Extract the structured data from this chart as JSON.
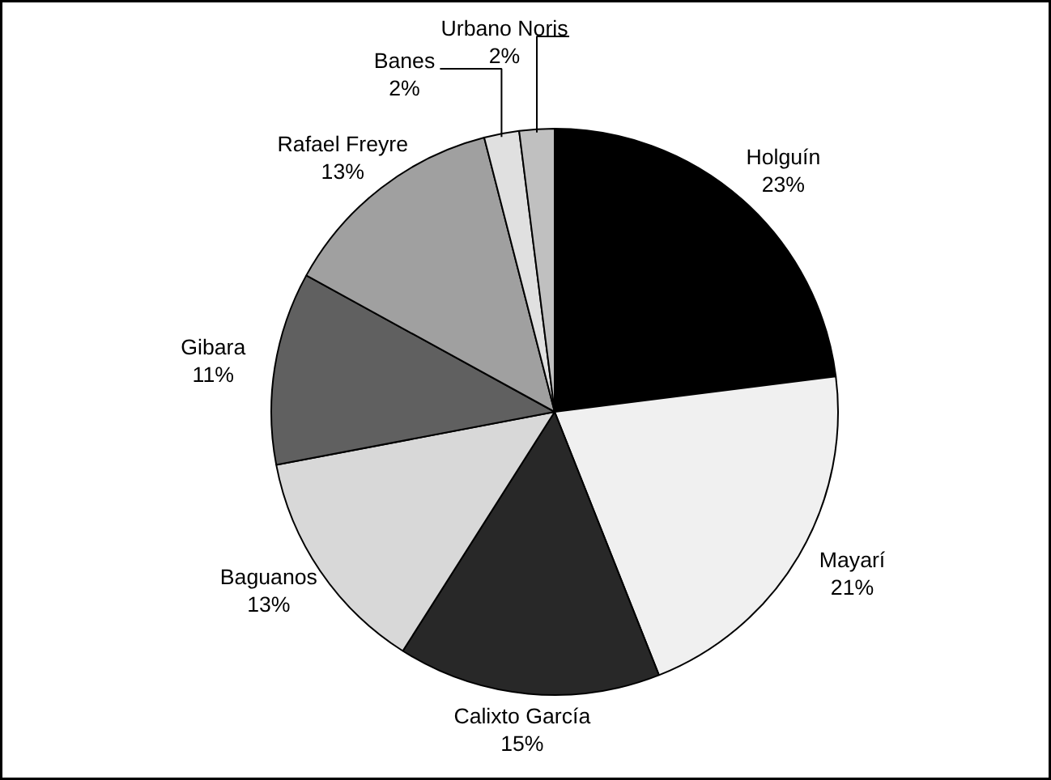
{
  "chart_data": {
    "type": "pie",
    "categories": [
      "Holguín",
      "Mayarí",
      "Calixto García",
      "Baguanos",
      "Gibara",
      "Rafael Freyre",
      "Banes",
      "Urbano Noris"
    ],
    "values": [
      23,
      21,
      15,
      13,
      11,
      13,
      2,
      2
    ],
    "value_labels": [
      "23%",
      "21%",
      "15%",
      "13%",
      "11%",
      "13%",
      "2%",
      "2%"
    ],
    "colors": [
      "#000000",
      "#f0f0f0",
      "#282828",
      "#d8d8d8",
      "#606060",
      "#a0a0a0",
      "#e0e0e0",
      "#c0c0c0"
    ]
  }
}
